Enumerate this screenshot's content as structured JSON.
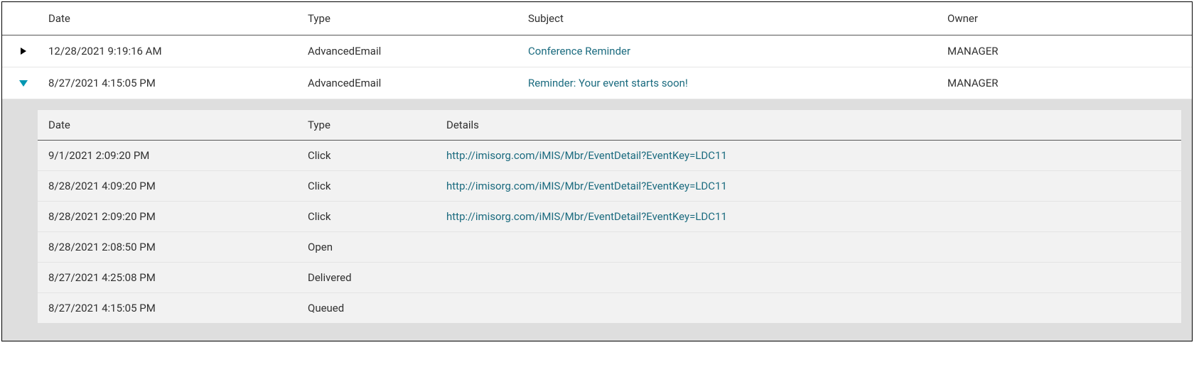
{
  "outer_headers": {
    "date": "Date",
    "type": "Type",
    "subject": "Subject",
    "owner": "Owner"
  },
  "rows": [
    {
      "expanded": false,
      "date": "12/28/2021 9:19:16 AM",
      "type": "AdvancedEmail",
      "subject": "Conference Reminder",
      "owner": "MANAGER"
    },
    {
      "expanded": true,
      "date": "8/27/2021 4:15:05 PM",
      "type": "AdvancedEmail",
      "subject": "Reminder: Your event starts soon!",
      "owner": "MANAGER"
    }
  ],
  "inner_headers": {
    "date": "Date",
    "type": "Type",
    "details": "Details"
  },
  "events": [
    {
      "date": "9/1/2021 2:09:20 PM",
      "type": "Click",
      "details": "http://imisorg.com/iMIS/Mbr/EventDetail?EventKey=LDC11",
      "is_link": true
    },
    {
      "date": "8/28/2021 4:09:20 PM",
      "type": "Click",
      "details": "http://imisorg.com/iMIS/Mbr/EventDetail?EventKey=LDC11",
      "is_link": true
    },
    {
      "date": "8/28/2021 2:09:20 PM",
      "type": "Click",
      "details": "http://imisorg.com/iMIS/Mbr/EventDetail?EventKey=LDC11",
      "is_link": true
    },
    {
      "date": "8/28/2021 2:08:50 PM",
      "type": "Open",
      "details": "",
      "is_link": false
    },
    {
      "date": "8/27/2021 4:25:08 PM",
      "type": "Delivered",
      "details": "",
      "is_link": false
    },
    {
      "date": "8/27/2021 4:15:05 PM",
      "type": "Queued",
      "details": "",
      "is_link": false
    }
  ]
}
